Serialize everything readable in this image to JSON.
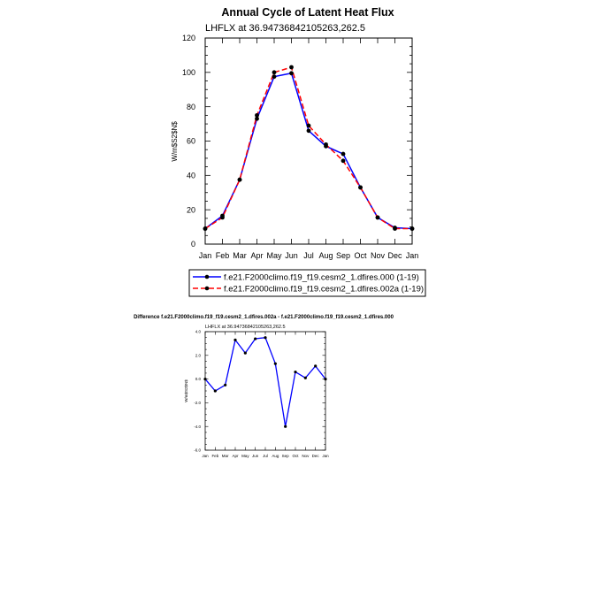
{
  "chart_data": [
    {
      "type": "line",
      "title": "Annual Cycle of Latent Heat Flux",
      "subtitle": "LHFLX at 36.94736842105263,262.5",
      "xlabel": "",
      "ylabel": "W/m$S2$N$",
      "categories": [
        "Jan",
        "Feb",
        "Mar",
        "Apr",
        "May",
        "Jun",
        "Jul",
        "Aug",
        "Sep",
        "Oct",
        "Nov",
        "Dec",
        "Jan"
      ],
      "ylim": [
        0,
        120
      ],
      "yticks": [
        0,
        20,
        40,
        60,
        80,
        100,
        120
      ],
      "legend_position": "bottom",
      "series": [
        {
          "name": "f.e21.F2000climo.f19_f19.cesm2_1.dfires.000 (1-19)",
          "color": "#0000ff",
          "dash": "solid",
          "values": [
            9,
            16.5,
            37.5,
            73,
            97.5,
            99.5,
            66,
            57,
            52.5,
            33,
            15.5,
            9.5,
            9
          ]
        },
        {
          "name": "f.e21.F2000climo.f19_f19.cesm2_1.dfires.002a (1-19)",
          "color": "#ff0000",
          "dash": "dashed",
          "values": [
            9,
            15.5,
            37.5,
            75,
            100,
            103,
            69,
            58,
            48.5,
            33,
            15.5,
            9,
            9
          ]
        }
      ]
    },
    {
      "type": "line",
      "title": "Difference f.e21.F2000climo.f19_f19.cesm2_1.dfires.002a - f.e21.F2000climo.f19_f19.cesm2_1.dfires.000",
      "subtitle": "LHFLX at 36.94736842105263,262.5",
      "xlabel": "",
      "ylabel": "W/m$S2$N$",
      "categories": [
        "Jan",
        "Feb",
        "Mar",
        "Apr",
        "May",
        "Jun",
        "Jul",
        "Aug",
        "Sep",
        "Oct",
        "Nov",
        "Dec",
        "Jan"
      ],
      "ylim": [
        -6,
        4
      ],
      "yticks": [
        -6,
        -4,
        -2,
        0,
        2,
        4
      ],
      "yticklabels": [
        "-6.0",
        "-4.0",
        "-2.0",
        "0.0",
        "2.0",
        "4.0"
      ],
      "series": [
        {
          "color": "#0000ff",
          "values": [
            0,
            -1,
            -0.5,
            3.3,
            2.2,
            3.4,
            3.5,
            1.3,
            -4.0,
            0.6,
            0.1,
            1.1,
            0
          ]
        }
      ]
    }
  ]
}
